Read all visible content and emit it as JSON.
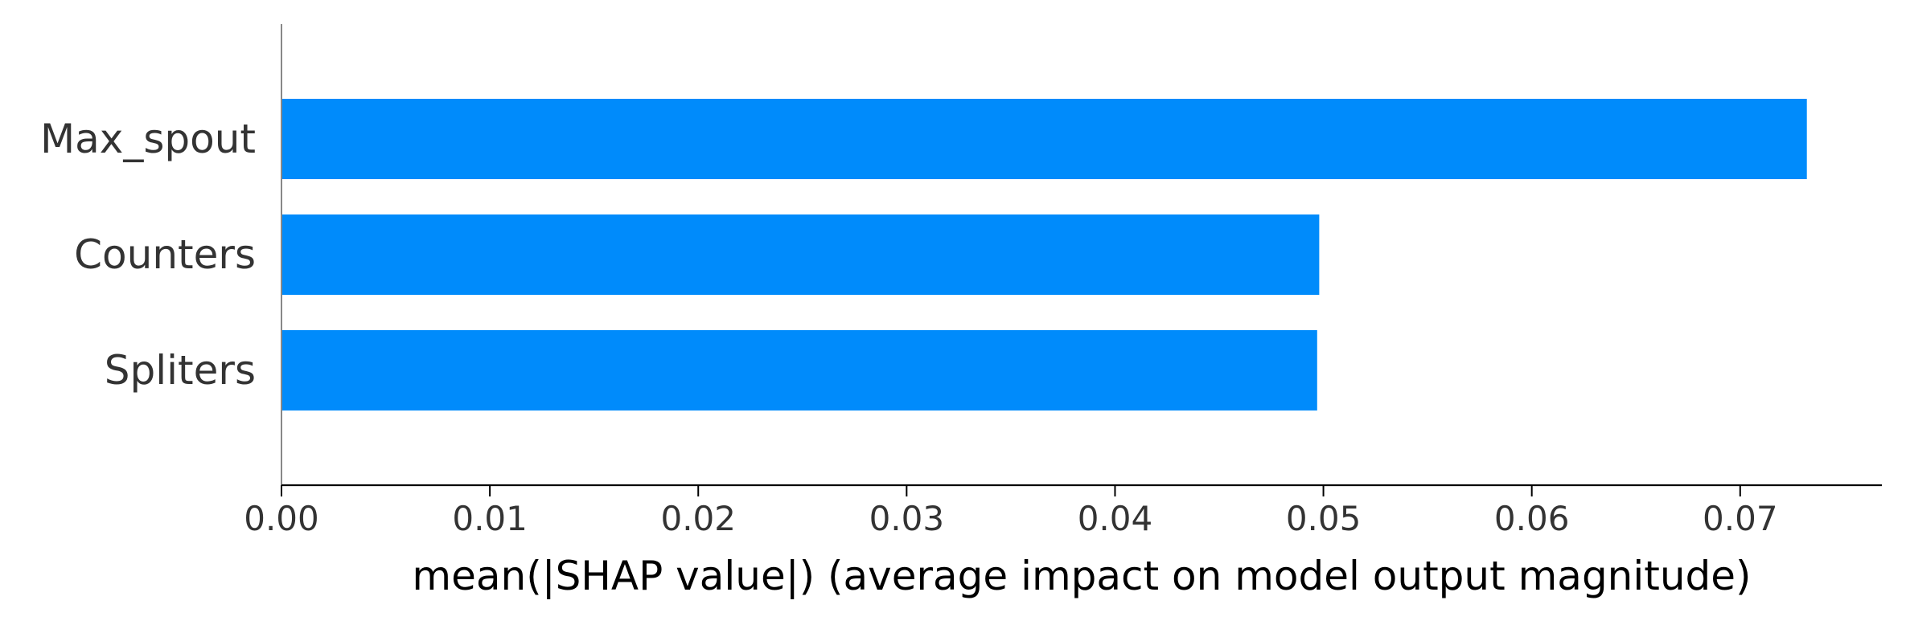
{
  "chart_data": {
    "type": "bar",
    "orientation": "horizontal",
    "categories": [
      "Max_spout",
      "Counters",
      "Spliters"
    ],
    "values": [
      0.0732,
      0.0498,
      0.0497
    ],
    "title": "",
    "xlabel": "mean(|SHAP value|) (average impact on model output magnitude)",
    "ylabel": "",
    "xlim": [
      0,
      0.0768
    ],
    "xticks": [
      0.0,
      0.01,
      0.02,
      0.03,
      0.04,
      0.05,
      0.06,
      0.07
    ],
    "xtick_labels": [
      "0.00",
      "0.01",
      "0.02",
      "0.03",
      "0.04",
      "0.05",
      "0.06",
      "0.07"
    ],
    "grid": false,
    "colors": {
      "bar": "#008bfb",
      "text": "#333333",
      "axis": "#000000",
      "left_axis": "#888888"
    }
  }
}
